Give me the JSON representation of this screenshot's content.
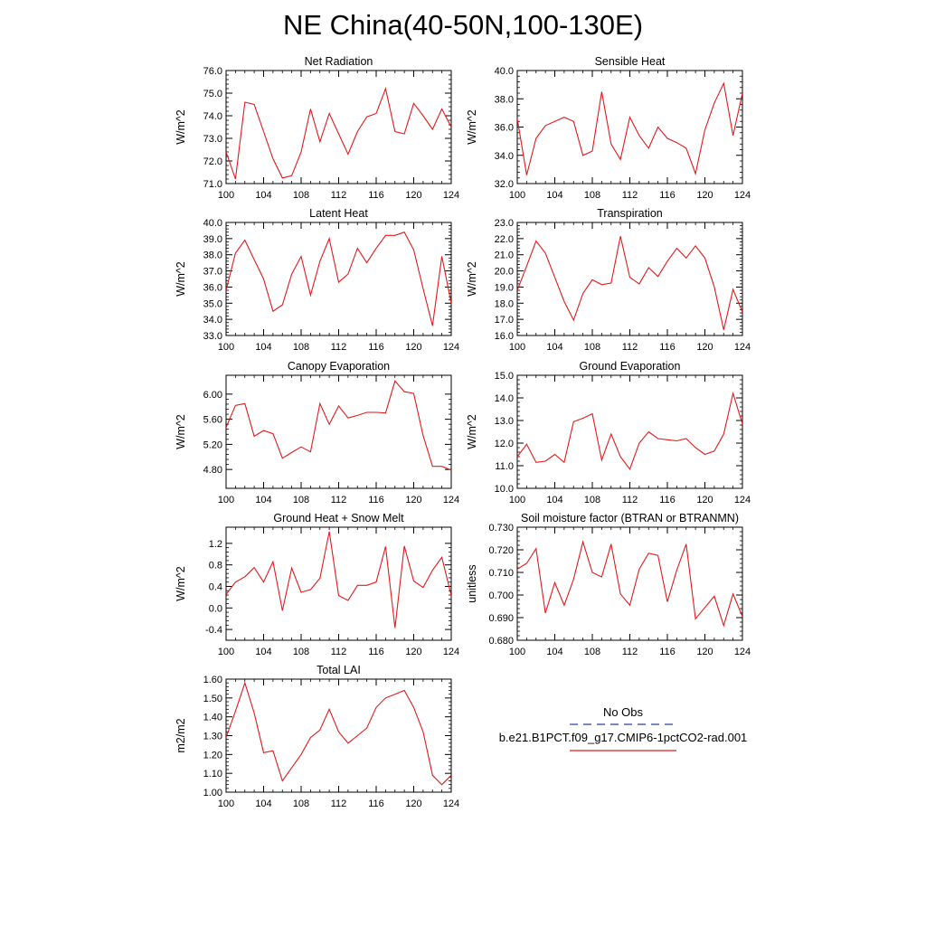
{
  "title": "NE China(40-50N,100-130E)",
  "line_color": "#e31a1c",
  "obs_color": "#2b3fa8",
  "legend": {
    "obs_label": "No Obs",
    "model_label": "b.e21.B1PCT.f09_g17.CMIP6-1pctCO2-rad.001"
  },
  "chart_data": [
    {
      "type": "line",
      "title": "Net Radiation",
      "ylabel": "W/m^2",
      "xlim": [
        100,
        124
      ],
      "ylim": [
        71.0,
        76.0
      ],
      "xticks": [
        "100",
        "104",
        "108",
        "112",
        "116",
        "120",
        "124"
      ],
      "yticks": [
        "71.0",
        "72.0",
        "73.0",
        "74.0",
        "75.0",
        "76.0"
      ],
      "x": [
        100,
        101,
        102,
        103,
        104,
        105,
        106,
        107,
        108,
        109,
        110,
        111,
        112,
        113,
        114,
        115,
        116,
        117,
        118,
        119,
        120,
        121,
        122,
        123,
        124
      ],
      "series": [
        {
          "values": [
            72.4,
            71.2,
            74.6,
            74.5,
            73.3,
            72.1,
            71.25,
            71.35,
            72.4,
            74.3,
            72.85,
            74.1,
            73.2,
            72.3,
            73.3,
            73.95,
            74.1,
            75.2,
            73.3,
            73.2,
            74.55,
            74.0,
            73.4,
            74.3,
            73.5
          ]
        }
      ]
    },
    {
      "type": "line",
      "title": "Sensible Heat",
      "ylabel": "W/m^2",
      "xlim": [
        100,
        124
      ],
      "ylim": [
        32.0,
        40.0
      ],
      "xticks": [
        "100",
        "104",
        "108",
        "112",
        "116",
        "120",
        "124"
      ],
      "yticks": [
        "32.0",
        "34.0",
        "36.0",
        "38.0",
        "40.0"
      ],
      "x": [
        100,
        101,
        102,
        103,
        104,
        105,
        106,
        107,
        108,
        109,
        110,
        111,
        112,
        113,
        114,
        115,
        116,
        117,
        118,
        119,
        120,
        121,
        122,
        123,
        124
      ],
      "series": [
        {
          "values": [
            36.6,
            32.6,
            35.2,
            36.1,
            36.4,
            36.7,
            36.4,
            34.0,
            34.3,
            38.5,
            34.8,
            33.7,
            36.7,
            35.4,
            34.5,
            36.0,
            35.2,
            34.9,
            34.5,
            32.7,
            35.8,
            37.7,
            39.1,
            35.4,
            38.4
          ]
        }
      ]
    },
    {
      "type": "line",
      "title": "Latent Heat",
      "ylabel": "W/m^2",
      "xlim": [
        100,
        124
      ],
      "ylim": [
        33.0,
        40.0
      ],
      "xticks": [
        "100",
        "104",
        "108",
        "112",
        "116",
        "120",
        "124"
      ],
      "yticks": [
        "33.0",
        "34.0",
        "35.0",
        "36.0",
        "37.0",
        "38.0",
        "39.0",
        "40.0"
      ],
      "x": [
        100,
        101,
        102,
        103,
        104,
        105,
        106,
        107,
        108,
        109,
        110,
        111,
        112,
        113,
        114,
        115,
        116,
        117,
        118,
        119,
        120,
        121,
        122,
        123,
        124
      ],
      "series": [
        {
          "values": [
            35.8,
            38.1,
            38.9,
            37.7,
            36.5,
            34.5,
            34.9,
            36.8,
            37.9,
            35.5,
            37.6,
            39.0,
            36.3,
            36.8,
            38.4,
            37.5,
            38.4,
            39.2,
            39.2,
            39.4,
            38.3,
            35.9,
            33.6,
            37.9,
            35.0
          ]
        }
      ]
    },
    {
      "type": "line",
      "title": "Transpiration",
      "ylabel": "W/m^2",
      "xlim": [
        100,
        124
      ],
      "ylim": [
        16.0,
        23.0
      ],
      "xticks": [
        "100",
        "104",
        "108",
        "112",
        "116",
        "120",
        "124"
      ],
      "yticks": [
        "16.0",
        "17.0",
        "18.0",
        "19.0",
        "20.0",
        "21.0",
        "22.0",
        "23.0"
      ],
      "x": [
        100,
        101,
        102,
        103,
        104,
        105,
        106,
        107,
        108,
        109,
        110,
        111,
        112,
        113,
        114,
        115,
        116,
        117,
        118,
        119,
        120,
        121,
        122,
        123,
        124
      ],
      "series": [
        {
          "values": [
            18.8,
            20.3,
            21.85,
            21.1,
            19.6,
            18.1,
            16.95,
            18.6,
            19.45,
            19.15,
            19.25,
            22.15,
            19.6,
            19.2,
            20.2,
            19.65,
            20.6,
            21.4,
            20.8,
            21.55,
            20.8,
            19.0,
            16.35,
            18.85,
            17.45
          ]
        }
      ]
    },
    {
      "type": "line",
      "title": "Canopy Evaporation",
      "ylabel": "W/m^2",
      "xlim": [
        100,
        124
      ],
      "ylim": [
        4.5,
        6.3
      ],
      "xticks": [
        "100",
        "104",
        "108",
        "112",
        "116",
        "120",
        "124"
      ],
      "yticks": [
        "4.80",
        "5.20",
        "5.60",
        "6.00"
      ],
      "ytick_values": [
        4.8,
        5.2,
        5.6,
        6.0
      ],
      "x": [
        100,
        101,
        102,
        103,
        104,
        105,
        106,
        107,
        108,
        109,
        110,
        111,
        112,
        113,
        114,
        115,
        116,
        117,
        118,
        119,
        120,
        121,
        122,
        123,
        124
      ],
      "series": [
        {
          "values": [
            5.47,
            5.82,
            5.85,
            5.33,
            5.42,
            5.37,
            4.98,
            5.07,
            5.16,
            5.08,
            5.85,
            5.52,
            5.81,
            5.62,
            5.66,
            5.71,
            5.71,
            5.7,
            6.21,
            6.04,
            6.01,
            5.34,
            4.85,
            4.85,
            4.79
          ]
        }
      ]
    },
    {
      "type": "line",
      "title": "Ground Evaporation",
      "ylabel": "W/m^2",
      "xlim": [
        100,
        124
      ],
      "ylim": [
        10.0,
        15.0
      ],
      "xticks": [
        "100",
        "104",
        "108",
        "112",
        "116",
        "120",
        "124"
      ],
      "yticks": [
        "10.0",
        "11.0",
        "12.0",
        "13.0",
        "14.0",
        "15.0"
      ],
      "x": [
        100,
        101,
        102,
        103,
        104,
        105,
        106,
        107,
        108,
        109,
        110,
        111,
        112,
        113,
        114,
        115,
        116,
        117,
        118,
        119,
        120,
        121,
        122,
        123,
        124
      ],
      "series": [
        {
          "values": [
            11.4,
            11.95,
            11.15,
            11.2,
            11.5,
            11.15,
            12.95,
            13.1,
            13.3,
            11.25,
            12.4,
            11.4,
            10.85,
            12.0,
            12.5,
            12.2,
            12.15,
            12.1,
            12.2,
            11.8,
            11.5,
            11.65,
            12.4,
            14.2,
            12.85
          ]
        }
      ]
    },
    {
      "type": "line",
      "title": "Ground Heat + Snow Melt",
      "ylabel": "W/m^2",
      "xlim": [
        100,
        124
      ],
      "ylim": [
        -0.6,
        1.5
      ],
      "xticks": [
        "100",
        "104",
        "108",
        "112",
        "116",
        "120",
        "124"
      ],
      "yticks": [
        "-0.4",
        "0.0",
        "0.4",
        "0.8",
        "1.2"
      ],
      "ytick_values": [
        -0.4,
        0.0,
        0.4,
        0.8,
        1.2
      ],
      "x": [
        100,
        101,
        102,
        103,
        104,
        105,
        106,
        107,
        108,
        109,
        110,
        111,
        112,
        113,
        114,
        115,
        116,
        117,
        118,
        119,
        120,
        121,
        122,
        123,
        124
      ],
      "series": [
        {
          "values": [
            0.25,
            0.48,
            0.58,
            0.75,
            0.48,
            0.86,
            -0.05,
            0.74,
            0.29,
            0.34,
            0.55,
            1.42,
            0.23,
            0.14,
            0.42,
            0.42,
            0.48,
            1.14,
            -0.37,
            1.15,
            0.5,
            0.38,
            0.7,
            0.94,
            0.23
          ]
        }
      ]
    },
    {
      "type": "line",
      "title": "Soil moisture factor (BTRAN or BTRANMN)",
      "ylabel": "unitless",
      "xlim": [
        100,
        124
      ],
      "ylim": [
        0.68,
        0.73
      ],
      "xticks": [
        "100",
        "104",
        "108",
        "112",
        "116",
        "120",
        "124"
      ],
      "yticks": [
        "0.680",
        "0.690",
        "0.700",
        "0.710",
        "0.720",
        "0.730"
      ],
      "x": [
        100,
        101,
        102,
        103,
        104,
        105,
        106,
        107,
        108,
        109,
        110,
        111,
        112,
        113,
        114,
        115,
        116,
        117,
        118,
        119,
        120,
        121,
        122,
        123,
        124
      ],
      "series": [
        {
          "values": [
            0.7115,
            0.714,
            0.7205,
            0.692,
            0.7055,
            0.6955,
            0.707,
            0.7235,
            0.71,
            0.708,
            0.7225,
            0.7005,
            0.6955,
            0.7115,
            0.7185,
            0.7175,
            0.697,
            0.711,
            0.7225,
            0.6895,
            0.6945,
            0.6995,
            0.6865,
            0.7005,
            0.6905
          ]
        }
      ]
    },
    {
      "type": "line",
      "title": "Total LAI",
      "ylabel": "m2/m2",
      "xlim": [
        100,
        124
      ],
      "ylim": [
        1.0,
        1.6
      ],
      "xticks": [
        "100",
        "104",
        "108",
        "112",
        "116",
        "120",
        "124"
      ],
      "yticks": [
        "1.00",
        "1.10",
        "1.20",
        "1.30",
        "1.40",
        "1.50",
        "1.60"
      ],
      "x": [
        100,
        101,
        102,
        103,
        104,
        105,
        106,
        107,
        108,
        109,
        110,
        111,
        112,
        113,
        114,
        115,
        116,
        117,
        118,
        119,
        120,
        121,
        122,
        123,
        124
      ],
      "series": [
        {
          "values": [
            1.29,
            1.43,
            1.58,
            1.42,
            1.21,
            1.22,
            1.06,
            1.13,
            1.2,
            1.29,
            1.33,
            1.44,
            1.32,
            1.26,
            1.3,
            1.34,
            1.45,
            1.5,
            1.52,
            1.54,
            1.45,
            1.32,
            1.09,
            1.04,
            1.09
          ]
        }
      ]
    }
  ]
}
